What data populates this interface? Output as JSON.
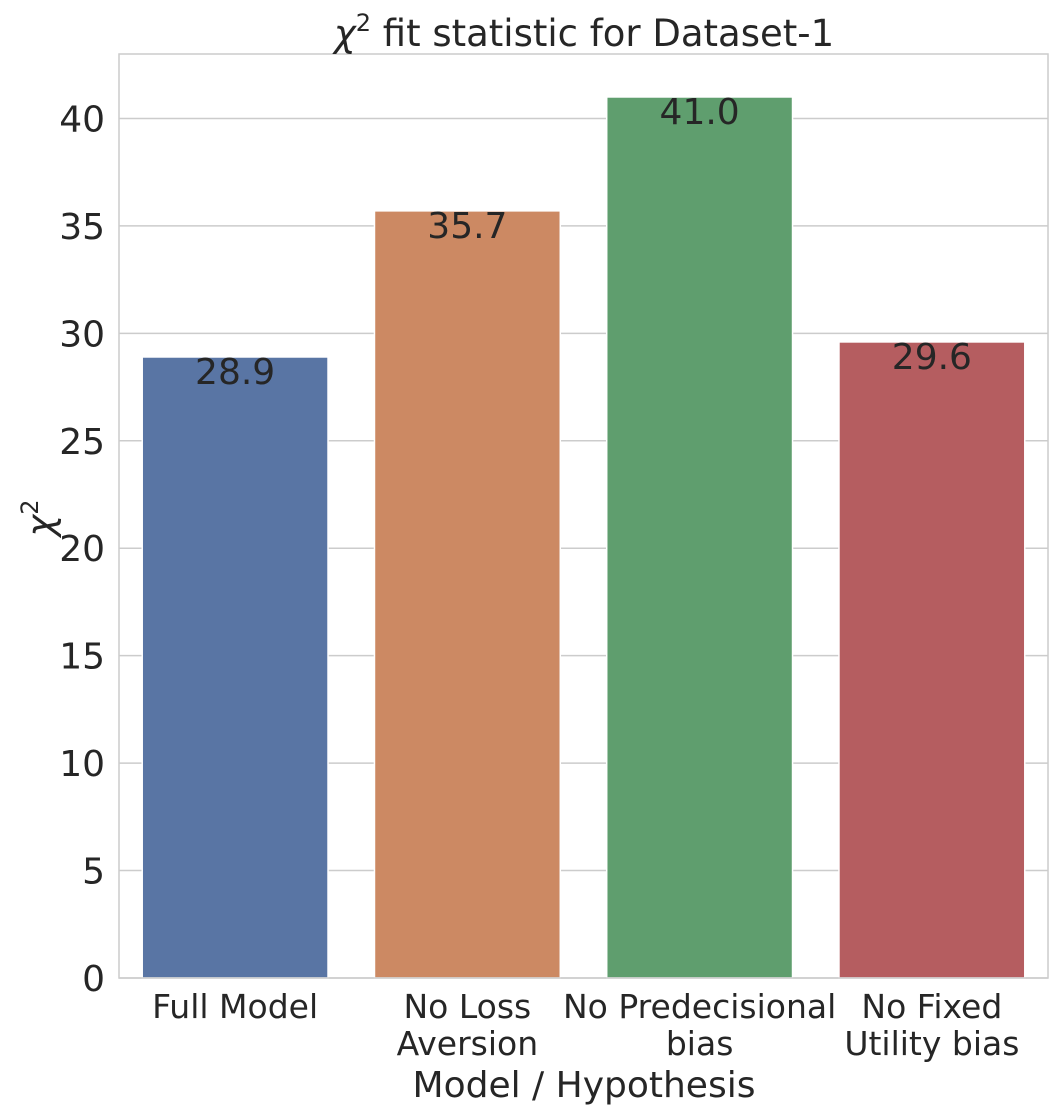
{
  "chart_data": {
    "type": "bar",
    "title": "χ2 fit statistic for Dataset-1",
    "title_parts": {
      "symbol": "χ",
      "superscript": "2",
      "rest": "fit statistic for Dataset-1"
    },
    "xlabel": "Model / Hypothesis",
    "ylabel": "χ2",
    "ylabel_parts": {
      "symbol": "χ",
      "superscript": "2"
    },
    "categories": [
      [
        "Full Model"
      ],
      [
        "No Loss",
        "Aversion"
      ],
      [
        "No Predecisional",
        "bias"
      ],
      [
        "No Fixed",
        "Utility bias"
      ]
    ],
    "values": [
      28.9,
      35.7,
      41.0,
      29.6
    ],
    "value_labels": [
      "28.9",
      "35.7",
      "41.0",
      "29.6"
    ],
    "colors": [
      "#5975a4",
      "#cc8963",
      "#5f9e6e",
      "#b55d60"
    ],
    "ylim": [
      0,
      43
    ],
    "yticks": [
      0,
      5,
      10,
      15,
      20,
      25,
      30,
      35,
      40
    ],
    "grid": true,
    "legend": "none"
  }
}
